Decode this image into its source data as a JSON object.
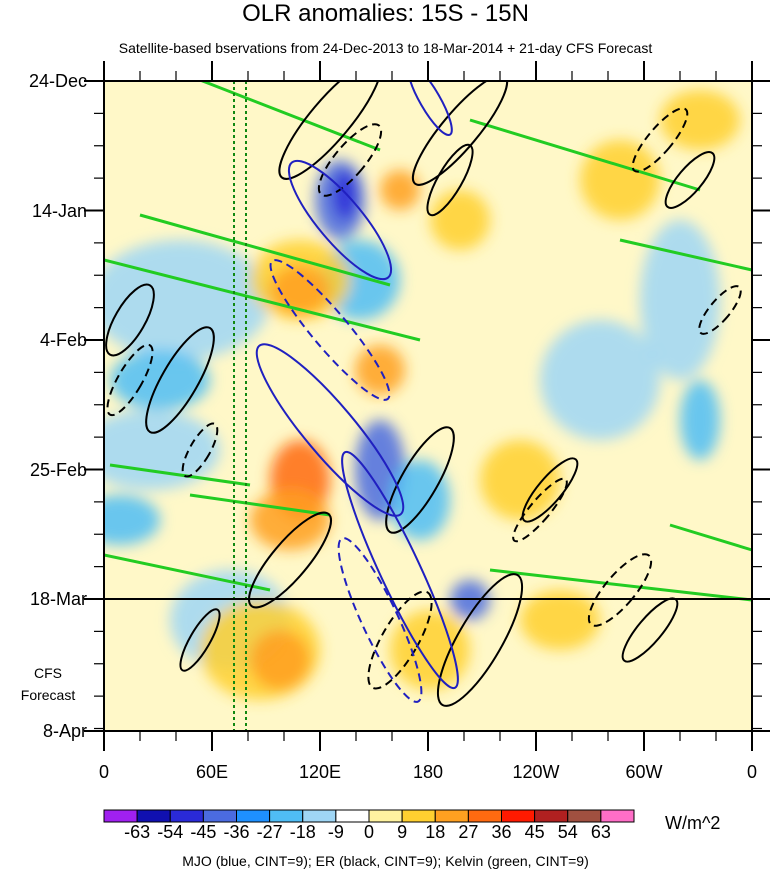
{
  "chart_data": {
    "type": "heatmap",
    "title": "OLR anomalies: 15S - 15N",
    "subtitle": "Satellite-based bservations from 24-Dec-2013 to 18-Mar-2014 + 21-day CFS Forecast",
    "x_tick_labels": [
      "0",
      "60E",
      "120E",
      "180",
      "120W",
      "60W",
      "0"
    ],
    "y_tick_labels": [
      "24-Dec",
      "14-Jan",
      "4-Feb",
      "25-Feb",
      "18-Mar",
      "8-Apr"
    ],
    "forecast_label_line1": "CFS",
    "forecast_label_line2": "Forecast",
    "colorbar": {
      "values": [
        "-63",
        "-54",
        "-45",
        "-36",
        "-27",
        "-18",
        "-9",
        "0",
        "9",
        "18",
        "27",
        "36",
        "45",
        "54",
        "63"
      ],
      "colors": [
        "#a020f0",
        "#1010b0",
        "#2a2ad8",
        "#4b6be0",
        "#1e90ff",
        "#4fbdf5",
        "#9fd6f5",
        "#ffffff",
        "#fff3a0",
        "#ffd030",
        "#ffa020",
        "#ff6a10",
        "#ff1a00",
        "#b02020",
        "#a05040",
        "#ff6ec7"
      ],
      "units": "W/m^2"
    },
    "footer": "MJO (blue, CINT=9); ER (black, CINT=9); Kelvin (green, CINT=9)",
    "overlays": [
      {
        "name": "MJO",
        "color": "blue"
      },
      {
        "name": "ER",
        "color": "black"
      },
      {
        "name": "Kelvin",
        "color": "green"
      }
    ],
    "x_range": [
      "0",
      "0"
    ],
    "y_range": [
      "24-Dec",
      "8-Apr"
    ],
    "observation_end": "18-Mar"
  }
}
